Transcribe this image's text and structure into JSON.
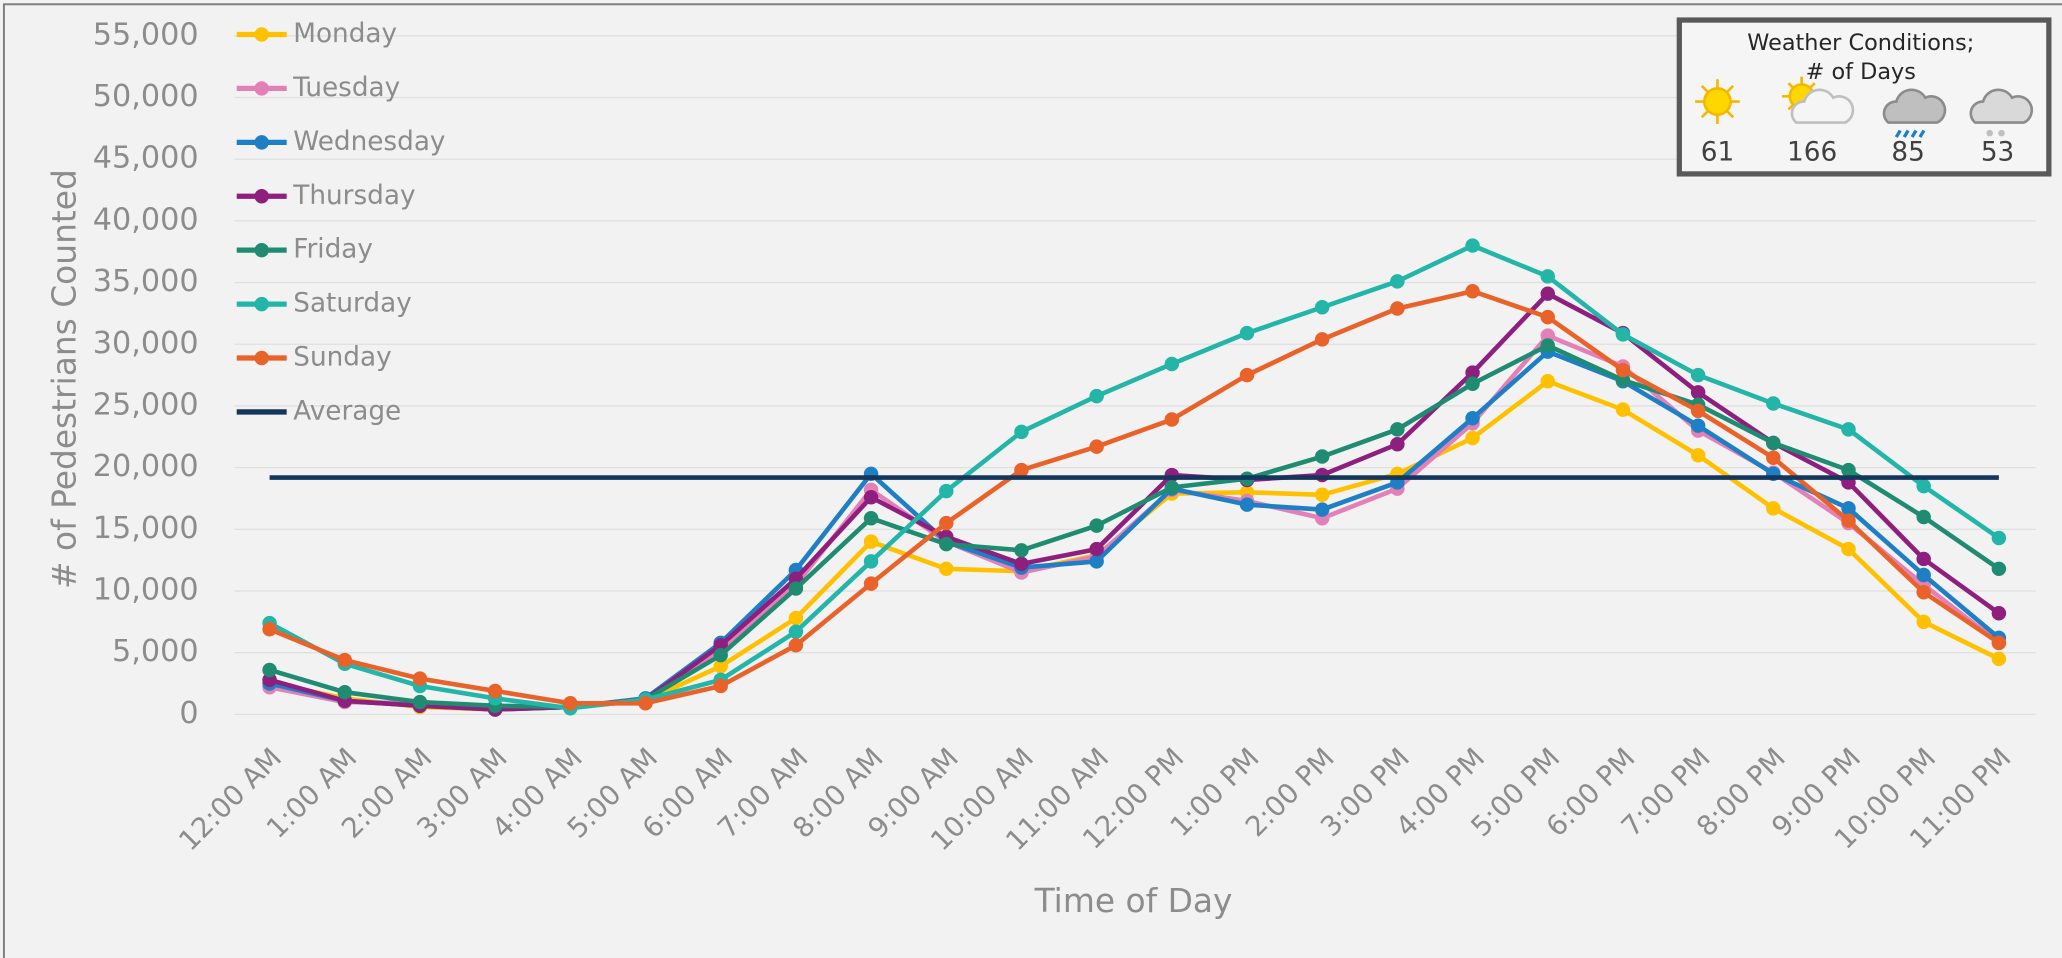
{
  "chart_data": {
    "type": "line",
    "x_label": "Time of Day",
    "y_label": "# of Pedestrians Counted",
    "categories": [
      "12:00 AM",
      "1:00 AM",
      "2:00 AM",
      "3:00 AM",
      "4:00 AM",
      "5:00 AM",
      "6:00 AM",
      "7:00 AM",
      "8:00 AM",
      "9:00 AM",
      "10:00 AM",
      "11:00 AM",
      "12:00 PM",
      "1:00 PM",
      "2:00 PM",
      "3:00 PM",
      "4:00 PM",
      "5:00 PM",
      "6:00 PM",
      "7:00 PM",
      "8:00 PM",
      "9:00 PM",
      "10:00 PM",
      "11:00 PM"
    ],
    "ylim": [
      0,
      55000
    ],
    "yticks": [
      0,
      {
        "value": 5000,
        "label": "5,000"
      },
      {
        "value": 10000,
        "label": "10,000"
      },
      {
        "value": 15000,
        "label": "15,000"
      },
      {
        "value": 20000,
        "label": "20,000"
      },
      {
        "value": 25000,
        "label": "25,000"
      },
      {
        "value": 30000,
        "label": "30,000"
      },
      {
        "value": 35000,
        "label": "35,000"
      },
      {
        "value": 40000,
        "label": "40,000"
      },
      {
        "value": 45000,
        "label": "45,000"
      },
      {
        "value": 50000,
        "label": "50,000"
      },
      {
        "value": 55000,
        "label": "55,000"
      }
    ],
    "grid": true,
    "legend": "top-left",
    "series": [
      {
        "name": "Monday",
        "color": "#ffc000",
        "values": [
          2600,
          1300,
          600,
          400,
          600,
          1100,
          3900,
          7800,
          14000,
          11800,
          11600,
          12900,
          17900,
          18000,
          17800,
          19500,
          22400,
          27000,
          24700,
          21000,
          16700,
          13400,
          7500,
          4500
        ]
      },
      {
        "name": "Tuesday",
        "color": "#e380b8",
        "values": [
          2200,
          1000,
          900,
          500,
          600,
          1100,
          5300,
          10500,
          18200,
          14000,
          11500,
          12800,
          18200,
          17300,
          15900,
          18300,
          23600,
          30700,
          28200,
          23000,
          19600,
          15500,
          10500,
          5800
        ]
      },
      {
        "name": "Wednesday",
        "color": "#1f7fc4",
        "values": [
          2500,
          1100,
          700,
          400,
          600,
          1300,
          5800,
          11700,
          19500,
          14000,
          11900,
          12400,
          18300,
          17000,
          16600,
          18800,
          24000,
          29400,
          27000,
          23400,
          19500,
          16700,
          11300,
          6200
        ]
      },
      {
        "name": "Thursday",
        "color": "#8e1f7f",
        "values": [
          2800,
          1100,
          700,
          400,
          600,
          1200,
          5600,
          11000,
          17600,
          14400,
          12200,
          13400,
          19400,
          19000,
          19400,
          21900,
          27700,
          34100,
          30900,
          26100,
          22000,
          18800,
          12600,
          8200
        ]
      },
      {
        "name": "Friday",
        "color": "#1f8c72",
        "values": [
          3600,
          1800,
          1000,
          700,
          600,
          1200,
          4800,
          10200,
          15900,
          13800,
          13300,
          15300,
          18400,
          19100,
          20900,
          23100,
          26800,
          29900,
          27100,
          25100,
          22000,
          19800,
          16000,
          11800
        ]
      },
      {
        "name": "Saturday",
        "color": "#23b5a8",
        "values": [
          7400,
          4100,
          2300,
          1300,
          500,
          1200,
          2800,
          6700,
          12400,
          18100,
          22900,
          25800,
          28400,
          30900,
          33000,
          35100,
          38000,
          35500,
          30800,
          27500,
          25200,
          23100,
          18500,
          14300
        ]
      },
      {
        "name": "Sunday",
        "color": "#e8622a",
        "values": [
          6900,
          4400,
          2900,
          1900,
          900,
          900,
          2300,
          5600,
          10600,
          15500,
          19800,
          21700,
          23900,
          27500,
          30400,
          32900,
          34300,
          32200,
          27900,
          24600,
          20800,
          15700,
          9900,
          5800
        ]
      },
      {
        "name": "Average",
        "color": "#14365c",
        "value": 19200
      }
    ],
    "weather": {
      "title": [
        "Weather Conditions;",
        "# of Days"
      ],
      "counts": [
        61,
        166,
        85,
        53
      ]
    }
  }
}
